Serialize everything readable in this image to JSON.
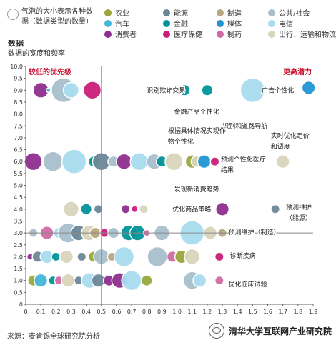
{
  "legend": {
    "size_note": "气泡的大小表示各种数据（数据类型的数量）",
    "items": [
      {
        "label": "农业",
        "color": "#9aa63a"
      },
      {
        "label": "能源",
        "color": "#6b8797"
      },
      {
        "label": "制造",
        "color": "#b9a67c"
      },
      {
        "label": "公共/社会",
        "color": "#a9bfcc"
      },
      {
        "label": "汽车",
        "color": "#44b6d9"
      },
      {
        "label": "金融",
        "color": "#009499"
      },
      {
        "label": "媒体",
        "color": "#2196d3"
      },
      {
        "label": "电信",
        "color": "#a9dcef"
      },
      {
        "label": "消费者",
        "color": "#8e2e8e"
      },
      {
        "label": "医疗保健",
        "color": "#c91f79"
      },
      {
        "label": "制药",
        "color": "#cf6aa4"
      },
      {
        "label": "出行、运输和物流",
        "color": "#d8d5ba"
      }
    ]
  },
  "source": "来源：麦肯锡全球研究院分析",
  "watermark": "清华大学互联网产业研究院",
  "chart_data": {
    "type": "scatter",
    "title": "数据",
    "subtitle": "数据的宽度和频率",
    "xlim": [
      0,
      1.9
    ],
    "ylim": [
      0,
      10
    ],
    "x_ticks": [
      "0",
      "0.1",
      "0.2",
      "0.3",
      "0.4",
      "0.5",
      "0.6",
      "0.7",
      "0.8",
      "0.9",
      "1.0",
      "1.1",
      "1.2",
      "1.3",
      "1.4",
      "1.5",
      "1.6",
      "1.7",
      "1.8",
      "1.9"
    ],
    "y_ticks": [
      "0",
      "0.5",
      "1.0",
      "1.5",
      "2.0",
      "2.5",
      "3.0",
      "3.5",
      "4.0",
      "4.5",
      "5.0",
      "5.5",
      "6.0",
      "6.5",
      "7.0",
      "7.5",
      "8.0",
      "8.5",
      "9.0",
      "9.5",
      "10.0"
    ],
    "quadrant_lines": {
      "x": 0.5,
      "y": 3.0
    },
    "quadrant_labels": {
      "low_priority": "较低的优先级",
      "high_potential": "更高潜力"
    },
    "grid": false,
    "bubbles": [
      {
        "x": 0.1,
        "y": 9.0,
        "r": 7,
        "s": 8
      },
      {
        "x": 0.15,
        "y": 9.0,
        "r": 2,
        "s": 4
      },
      {
        "x": 0.25,
        "y": 9.0,
        "r": 11,
        "s": 3
      },
      {
        "x": 0.3,
        "y": 9.0,
        "r": 7,
        "s": 7
      },
      {
        "x": 0.44,
        "y": 9.0,
        "r": 8,
        "s": 9
      },
      {
        "x": 1.05,
        "y": 9.0,
        "r": 5,
        "s": 5
      },
      {
        "x": 1.2,
        "y": 9.0,
        "r": 5,
        "s": 5
      },
      {
        "x": 1.5,
        "y": 9.0,
        "r": 11,
        "s": 7
      },
      {
        "x": 1.87,
        "y": 9.1,
        "r": 6,
        "s": 6
      },
      {
        "x": 0.05,
        "y": 6.0,
        "r": 8,
        "s": 8
      },
      {
        "x": 0.18,
        "y": 6.0,
        "r": 9,
        "s": 3
      },
      {
        "x": 0.32,
        "y": 6.0,
        "r": 11,
        "s": 7
      },
      {
        "x": 0.45,
        "y": 6.0,
        "r": 5,
        "s": 5
      },
      {
        "x": 0.5,
        "y": 6.0,
        "r": 8,
        "s": 1
      },
      {
        "x": 0.58,
        "y": 6.0,
        "r": 5,
        "s": 3
      },
      {
        "x": 0.65,
        "y": 6.0,
        "r": 7,
        "s": 8
      },
      {
        "x": 0.75,
        "y": 6.0,
        "r": 8,
        "s": 7
      },
      {
        "x": 0.85,
        "y": 6.0,
        "r": 7,
        "s": 3
      },
      {
        "x": 0.9,
        "y": 6.0,
        "r": 5,
        "s": 5
      },
      {
        "x": 0.98,
        "y": 6.0,
        "r": 8,
        "s": 11
      },
      {
        "x": 1.1,
        "y": 6.0,
        "r": 6,
        "s": 0
      },
      {
        "x": 1.13,
        "y": 6.0,
        "r": 5,
        "s": 11
      },
      {
        "x": 1.18,
        "y": 6.0,
        "r": 6,
        "s": 6
      },
      {
        "x": 1.25,
        "y": 6.0,
        "r": 4,
        "s": 9
      },
      {
        "x": 1.7,
        "y": 6.0,
        "r": 6,
        "s": 11
      },
      {
        "x": 0.3,
        "y": 4.0,
        "r": 7,
        "s": 11
      },
      {
        "x": 0.4,
        "y": 4.0,
        "r": 5,
        "s": 5
      },
      {
        "x": 0.48,
        "y": 4.0,
        "r": 4,
        "s": 1
      },
      {
        "x": 0.72,
        "y": 4.0,
        "r": 3,
        "s": 9
      },
      {
        "x": 0.66,
        "y": 4.0,
        "r": 4,
        "s": 8
      },
      {
        "x": 0.78,
        "y": 4.0,
        "r": 4,
        "s": 11
      },
      {
        "x": 1.3,
        "y": 4.0,
        "r": 6,
        "s": 8
      },
      {
        "x": 1.65,
        "y": 4.0,
        "r": 4,
        "s": 1
      },
      {
        "x": 0.05,
        "y": 3.0,
        "r": 4,
        "s": 3
      },
      {
        "x": 0.14,
        "y": 3.0,
        "r": 6,
        "s": 10
      },
      {
        "x": 0.22,
        "y": 3.0,
        "r": 5,
        "s": 7
      },
      {
        "x": 0.28,
        "y": 3.0,
        "r": 9,
        "s": 3
      },
      {
        "x": 0.35,
        "y": 3.0,
        "r": 7,
        "s": 1
      },
      {
        "x": 0.42,
        "y": 3.0,
        "r": 7,
        "s": 11
      },
      {
        "x": 0.46,
        "y": 3.0,
        "r": 5,
        "s": 2
      },
      {
        "x": 0.52,
        "y": 3.0,
        "r": 4,
        "s": 9
      },
      {
        "x": 0.58,
        "y": 3.0,
        "r": 5,
        "s": 3
      },
      {
        "x": 0.68,
        "y": 3.0,
        "r": 7,
        "s": 5
      },
      {
        "x": 0.74,
        "y": 3.0,
        "r": 7,
        "s": 5
      },
      {
        "x": 0.8,
        "y": 3.0,
        "r": 3,
        "s": 10
      },
      {
        "x": 0.9,
        "y": 3.0,
        "r": 7,
        "s": 3
      },
      {
        "x": 1.1,
        "y": 3.0,
        "r": 11,
        "s": 7
      },
      {
        "x": 1.22,
        "y": 3.0,
        "r": 6,
        "s": 11
      },
      {
        "x": 1.3,
        "y": 3.0,
        "r": 4,
        "s": 2
      },
      {
        "x": 0.03,
        "y": 2.0,
        "r": 3,
        "s": 8
      },
      {
        "x": 0.08,
        "y": 2.0,
        "r": 5,
        "s": 1
      },
      {
        "x": 0.14,
        "y": 2.0,
        "r": 6,
        "s": 7
      },
      {
        "x": 0.2,
        "y": 2.0,
        "r": 4,
        "s": 5
      },
      {
        "x": 0.27,
        "y": 2.0,
        "r": 6,
        "s": 11
      },
      {
        "x": 0.37,
        "y": 2.0,
        "r": 4,
        "s": 1
      },
      {
        "x": 0.45,
        "y": 2.0,
        "r": 5,
        "s": 0
      },
      {
        "x": 0.5,
        "y": 2.0,
        "r": 7,
        "s": 3
      },
      {
        "x": 0.57,
        "y": 2.0,
        "r": 4,
        "s": 2
      },
      {
        "x": 0.65,
        "y": 2.0,
        "r": 9,
        "s": 7
      },
      {
        "x": 0.87,
        "y": 2.0,
        "r": 9,
        "s": 3
      },
      {
        "x": 0.97,
        "y": 2.0,
        "r": 5,
        "s": 10
      },
      {
        "x": 1.03,
        "y": 2.0,
        "r": 6,
        "s": 0
      },
      {
        "x": 1.1,
        "y": 2.0,
        "r": 7,
        "s": 11
      },
      {
        "x": 1.28,
        "y": 2.0,
        "r": 4,
        "s": 9
      },
      {
        "x": 0.05,
        "y": 1.0,
        "r": 5,
        "s": 0
      },
      {
        "x": 0.1,
        "y": 1.0,
        "r": 6,
        "s": 4
      },
      {
        "x": 0.18,
        "y": 1.0,
        "r": 4,
        "s": 5
      },
      {
        "x": 0.22,
        "y": 1.0,
        "r": 4,
        "s": 10
      },
      {
        "x": 0.28,
        "y": 1.0,
        "r": 6,
        "s": 11
      },
      {
        "x": 0.35,
        "y": 1.0,
        "r": 4,
        "s": 1
      },
      {
        "x": 0.42,
        "y": 1.0,
        "r": 7,
        "s": 7
      },
      {
        "x": 0.48,
        "y": 1.0,
        "r": 6,
        "s": 1
      },
      {
        "x": 0.55,
        "y": 1.0,
        "r": 5,
        "s": 8
      },
      {
        "x": 0.62,
        "y": 1.0,
        "r": 7,
        "s": 8
      },
      {
        "x": 0.7,
        "y": 1.0,
        "r": 9,
        "s": 7
      },
      {
        "x": 0.8,
        "y": 1.0,
        "r": 5,
        "s": 0
      },
      {
        "x": 1.1,
        "y": 1.0,
        "r": 8,
        "s": 3
      },
      {
        "x": 1.15,
        "y": 1.0,
        "r": 6,
        "s": 7
      },
      {
        "x": 1.28,
        "y": 1.0,
        "r": 4,
        "s": 10
      }
    ],
    "annotations": [
      {
        "text": "识别欺诈交易",
        "x": 0.8,
        "y": 8.9,
        "anchor": "start"
      },
      {
        "text": "广告个性化",
        "x": 1.56,
        "y": 8.9,
        "anchor": "start"
      },
      {
        "text": "金融产品个性化",
        "x": 1.13,
        "y": 8.0,
        "anchor": "middle"
      },
      {
        "text": "识别和道路导航",
        "x": 1.45,
        "y": 7.4,
        "anchor": "middle"
      },
      {
        "text": "根据具体情况实现作",
        "x": 0.94,
        "y": 7.2,
        "anchor": "start"
      },
      {
        "text": "物个性化",
        "x": 0.94,
        "y": 6.75,
        "anchor": "start"
      },
      {
        "text": "实时优化定价",
        "x": 1.62,
        "y": 7.0,
        "anchor": "start"
      },
      {
        "text": "和调度",
        "x": 1.62,
        "y": 6.55,
        "anchor": "start"
      },
      {
        "text": "预测个性化医疗",
        "x": 1.29,
        "y": 6.0,
        "anchor": "start"
      },
      {
        "text": "结果",
        "x": 1.29,
        "y": 5.55,
        "anchor": "start"
      },
      {
        "text": "发现新消费趋势",
        "x": 1.13,
        "y": 4.75,
        "anchor": "middle"
      },
      {
        "text": "优化商品策略",
        "x": 0.97,
        "y": 3.9,
        "anchor": "start"
      },
      {
        "text": "预测维护",
        "x": 1.72,
        "y": 4.0,
        "anchor": "start"
      },
      {
        "text": "（能源）",
        "x": 1.72,
        "y": 3.55,
        "anchor": "start"
      },
      {
        "text": "预测维护（制造）",
        "x": 1.34,
        "y": 2.95,
        "anchor": "start"
      },
      {
        "text": "诊断疾病",
        "x": 1.35,
        "y": 1.95,
        "anchor": "start"
      },
      {
        "text": "优化临床试验",
        "x": 1.34,
        "y": 0.75,
        "anchor": "start"
      }
    ]
  }
}
